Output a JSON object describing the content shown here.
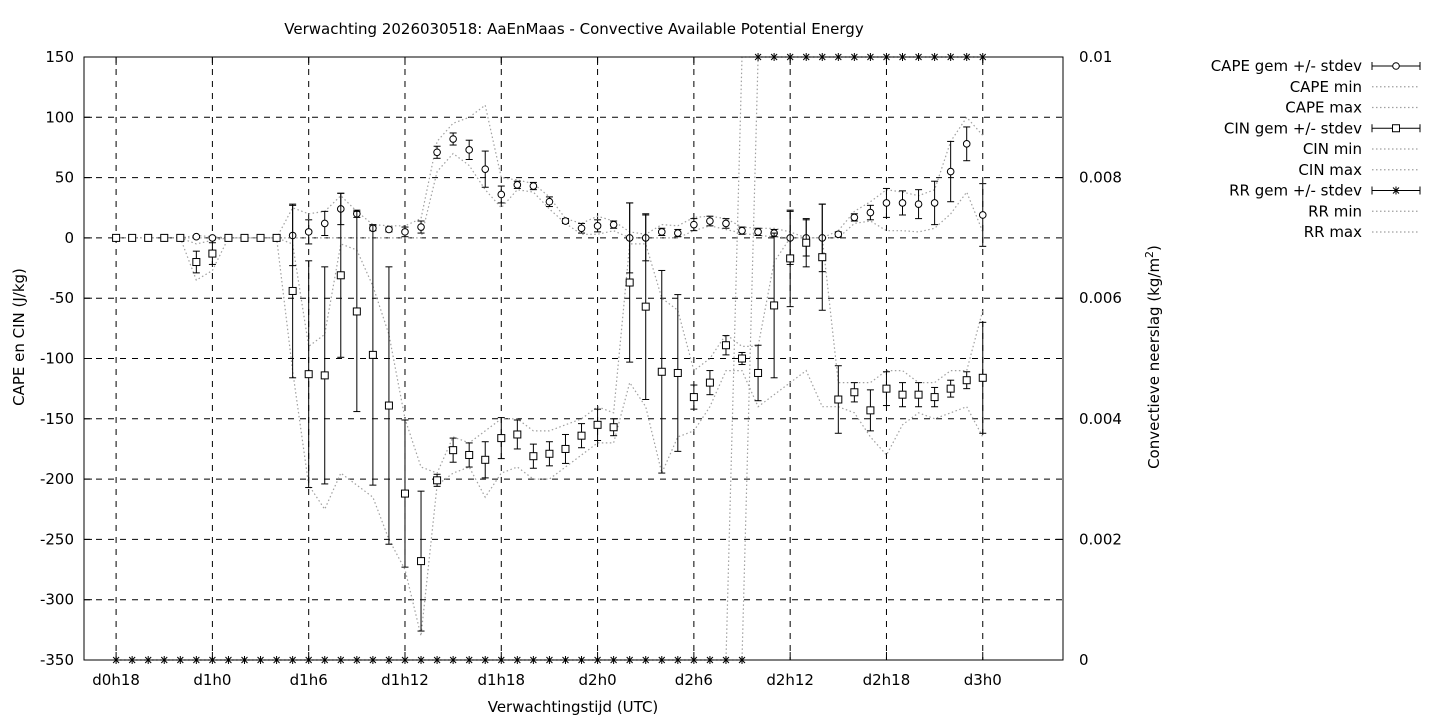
{
  "chart_data": {
    "type": "scatter",
    "title": "Verwachting 2026030518: AaEnMaas - Convective Available Potential Energy",
    "xlabel": "Verwachtingstijd (UTC)",
    "ylabel": "CAPE en CIN (J/kg)",
    "y2label": "Convectieve neerslag (kg/m",
    "y2label_sup": "2",
    "y2label_end": ")",
    "xlim": [
      -2,
      59
    ],
    "ylim": [
      -350,
      150
    ],
    "y2lim": [
      0,
      0.01
    ],
    "grid": true,
    "legend_position": "top-right-outside",
    "x_ticks": [
      {
        "x": 0,
        "label": "d0h18"
      },
      {
        "x": 6,
        "label": "d1h0"
      },
      {
        "x": 12,
        "label": "d1h6"
      },
      {
        "x": 18,
        "label": "d1h12"
      },
      {
        "x": 24,
        "label": "d1h18"
      },
      {
        "x": 30,
        "label": "d2h0"
      },
      {
        "x": 36,
        "label": "d2h6"
      },
      {
        "x": 42,
        "label": "d2h12"
      },
      {
        "x": 48,
        "label": "d2h18"
      },
      {
        "x": 54,
        "label": "d3h0"
      }
    ],
    "y_ticks": [
      {
        "v": 150,
        "label": "150"
      },
      {
        "v": 100,
        "label": "100"
      },
      {
        "v": 50,
        "label": "50"
      },
      {
        "v": 0,
        "label": "0"
      },
      {
        "v": -50,
        "label": "-50"
      },
      {
        "v": -100,
        "label": "-100"
      },
      {
        "v": -150,
        "label": "-150"
      },
      {
        "v": -200,
        "label": "-200"
      },
      {
        "v": -250,
        "label": "-250"
      },
      {
        "v": -300,
        "label": "-300"
      },
      {
        "v": -350,
        "label": "-350"
      }
    ],
    "y2_ticks": [
      {
        "v": 0.01,
        "label": "0.01"
      },
      {
        "v": 0.008,
        "label": "0.008"
      },
      {
        "v": 0.006,
        "label": "0.006"
      },
      {
        "v": 0.004,
        "label": "0.004"
      },
      {
        "v": 0.002,
        "label": "0.002"
      },
      {
        "v": 0,
        "label": "0"
      }
    ],
    "x": [
      0,
      1,
      2,
      3,
      4,
      5,
      6,
      7,
      8,
      9,
      10,
      11,
      12,
      13,
      14,
      15,
      16,
      17,
      18,
      19,
      20,
      21,
      22,
      23,
      24,
      25,
      26,
      27,
      28,
      29,
      30,
      31,
      32,
      33,
      34,
      35,
      36,
      37,
      38,
      39,
      40,
      41,
      42,
      43,
      44,
      45,
      46,
      47,
      48,
      49,
      50,
      51,
      52,
      53,
      54
    ],
    "series": [
      {
        "name": "CAPE gem +/- stdev",
        "marker": "circle",
        "values": [
          0,
          0,
          0,
          0,
          0,
          1,
          0,
          0,
          0,
          0,
          0,
          2,
          5,
          12,
          24,
          20,
          8,
          7,
          5,
          9,
          71,
          82,
          73,
          57,
          36,
          44,
          43,
          30,
          14,
          8,
          10,
          11,
          0,
          0,
          5,
          4,
          11,
          14,
          12,
          6,
          5,
          4,
          0,
          0,
          0,
          3,
          17,
          21,
          29,
          29,
          28,
          29,
          55,
          78,
          19
        ],
        "errors": [
          0,
          0,
          0,
          0,
          0,
          1,
          0,
          0,
          0,
          0,
          0,
          25,
          10,
          10,
          13,
          3,
          2,
          2,
          4,
          5,
          5,
          5,
          8,
          15,
          7,
          3,
          3,
          4,
          2,
          4,
          5,
          3,
          29,
          19,
          3,
          3,
          5,
          4,
          4,
          3,
          3,
          3,
          22,
          15,
          28,
          2,
          3,
          6,
          12,
          10,
          12,
          18,
          25,
          14,
          26
        ]
      },
      {
        "name": "CAPE min",
        "line": "dotted",
        "values": [
          0,
          0,
          0,
          0,
          0,
          0,
          0,
          0,
          0,
          0,
          0,
          0,
          0,
          0,
          0,
          0,
          0,
          0,
          0,
          0,
          55,
          70,
          60,
          40,
          25,
          40,
          38,
          24,
          12,
          3,
          3,
          6,
          0,
          0,
          0,
          0,
          6,
          10,
          7,
          4,
          2,
          1,
          0,
          0,
          0,
          0,
          12,
          14,
          6,
          6,
          5,
          8,
          20,
          38,
          5
        ]
      },
      {
        "name": "CAPE max",
        "values": [
          0,
          0,
          0,
          0,
          0,
          2,
          1,
          0,
          0,
          0,
          0,
          25,
          20,
          22,
          35,
          22,
          11,
          10,
          10,
          16,
          80,
          95,
          100,
          110,
          50,
          48,
          45,
          34,
          16,
          12,
          18,
          14,
          5,
          3,
          11,
          10,
          17,
          18,
          16,
          9,
          8,
          8,
          5,
          0,
          0,
          6,
          22,
          30,
          40,
          38,
          35,
          40,
          80,
          100,
          85
        ]
      },
      {
        "name": "CIN gem +/- stdev",
        "marker": "square",
        "values": [
          0,
          0,
          0,
          0,
          0,
          -20,
          -13,
          0,
          0,
          0,
          0,
          -44,
          -113,
          -114,
          -31,
          -61,
          -97,
          -139,
          -212,
          -268,
          -201,
          -176,
          -180,
          -184,
          -166,
          -163,
          -181,
          -179,
          -175,
          -164,
          -155,
          -157,
          -37,
          -57,
          -111,
          -112,
          -132,
          -120,
          -89,
          -100,
          -112,
          -56,
          -17,
          -4,
          -16,
          -134,
          -128,
          -143,
          -125,
          -130,
          -130,
          -132,
          -125,
          -118,
          -116
        ]
      },
      {
        "name": "CIN min",
        "line": "dotted",
        "values": [
          0,
          0,
          0,
          0,
          0,
          -35,
          -27,
          0,
          0,
          0,
          0,
          -110,
          -205,
          -225,
          -195,
          -205,
          -215,
          -250,
          -275,
          -330,
          -205,
          -195,
          -190,
          -215,
          -195,
          -190,
          -200,
          -200,
          -190,
          -180,
          -170,
          -170,
          -120,
          -140,
          -195,
          -165,
          -160,
          -140,
          -110,
          -110,
          -140,
          -130,
          -120,
          -110,
          -140,
          -140,
          -145,
          -165,
          -180,
          -155,
          -145,
          -150,
          -145,
          -140,
          -165
        ]
      },
      {
        "name": "CIN max",
        "line": "dotted",
        "values": [
          0,
          0,
          0,
          0,
          0,
          -5,
          -2,
          0,
          0,
          0,
          0,
          -5,
          -90,
          -80,
          -5,
          -10,
          -40,
          -80,
          -150,
          -190,
          -195,
          -165,
          -170,
          -160,
          -150,
          -150,
          -160,
          -160,
          -155,
          -150,
          -140,
          -145,
          -5,
          -5,
          -50,
          -60,
          -110,
          -100,
          -80,
          -90,
          -90,
          -20,
          0,
          0,
          0,
          -120,
          -120,
          -120,
          -110,
          -110,
          -120,
          -120,
          -110,
          -110,
          -60
        ]
      },
      {
        "name": "RR gem +/- stdev",
        "marker": "star",
        "axis": "y2",
        "values": [
          0,
          0,
          0,
          0,
          0,
          0,
          0,
          0,
          0,
          0,
          0,
          0,
          0,
          0,
          0,
          0,
          0,
          0,
          0,
          0,
          0,
          0,
          0,
          0,
          0,
          0,
          0,
          0,
          0,
          0,
          0,
          0,
          0,
          0,
          0,
          0,
          0,
          0,
          0,
          0,
          0.01,
          0.01,
          0.01,
          0.01,
          0.01,
          0.01,
          0.01,
          0.01,
          0.01,
          0.01,
          0.01,
          0.01,
          0.01,
          0.01,
          0.01
        ]
      },
      {
        "name": "RR min",
        "line": "dotted",
        "axis": "y2",
        "values": [
          0,
          0,
          0,
          0,
          0,
          0,
          0,
          0,
          0,
          0,
          0,
          0,
          0,
          0,
          0,
          0,
          0,
          0,
          0,
          0,
          0,
          0,
          0,
          0,
          0,
          0,
          0,
          0,
          0,
          0,
          0,
          0,
          0,
          0,
          0,
          0,
          0,
          0,
          0,
          0,
          0.01,
          0.01,
          0.01,
          0.01,
          0.01,
          0.01,
          0.01,
          0.01,
          0.01,
          0.01,
          0.01,
          0.01,
          0.01,
          0.01,
          0.01
        ]
      },
      {
        "name": "RR max",
        "line": "dotted",
        "axis": "y2",
        "values": [
          0,
          0,
          0,
          0,
          0,
          0,
          0,
          0,
          0,
          0,
          0,
          0,
          0,
          0,
          0,
          0,
          0,
          0,
          0,
          0,
          0,
          0,
          0,
          0,
          0,
          0,
          0,
          0,
          0,
          0,
          0,
          0,
          0,
          0,
          0,
          0,
          0,
          0,
          0,
          0.01,
          0.01,
          0.01,
          0.01,
          0.01,
          0.01,
          0.01,
          0.01,
          0.01,
          0.01,
          0.01,
          0.01,
          0.01,
          0.01,
          0.01,
          0.01
        ]
      }
    ],
    "cin_errors": [
      0,
      0,
      0,
      0,
      0,
      9,
      9,
      0,
      0,
      0,
      0,
      72,
      94,
      90,
      68,
      83,
      108,
      115,
      61,
      58,
      5,
      10,
      10,
      15,
      17,
      12,
      10,
      10,
      12,
      10,
      13,
      7,
      66,
      77,
      84,
      65,
      10,
      10,
      8,
      5,
      23,
      60,
      40,
      20,
      44,
      28,
      8,
      17,
      14,
      10,
      10,
      8,
      7,
      7,
      46
    ],
    "colors": {
      "data": "#000000",
      "grid": "#000000",
      "envelope": "#a0a0a0"
    }
  }
}
